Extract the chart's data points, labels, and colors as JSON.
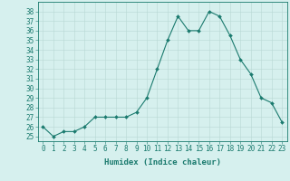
{
  "x": [
    0,
    1,
    2,
    3,
    4,
    5,
    6,
    7,
    8,
    9,
    10,
    11,
    12,
    13,
    14,
    15,
    16,
    17,
    18,
    19,
    20,
    21,
    22,
    23
  ],
  "y": [
    26,
    25,
    25.5,
    25.5,
    26,
    27,
    27,
    27,
    27,
    27.5,
    29,
    32,
    35,
    37.5,
    36,
    36,
    38,
    37.5,
    35.5,
    33,
    31.5,
    29,
    28.5,
    26.5
  ],
  "line_color": "#1a7a6e",
  "marker": "D",
  "marker_size": 2,
  "bg_color": "#d6f0ee",
  "grid_color": "#b8d8d4",
  "xlabel": "Humidex (Indice chaleur)",
  "xlim": [
    -0.5,
    23.5
  ],
  "ylim": [
    24.5,
    39.0
  ],
  "xtick_labels": [
    "0",
    "1",
    "2",
    "3",
    "4",
    "5",
    "6",
    "7",
    "8",
    "9",
    "10",
    "11",
    "12",
    "13",
    "14",
    "15",
    "16",
    "17",
    "18",
    "19",
    "20",
    "21",
    "22",
    "23"
  ],
  "ytick_values": [
    25,
    26,
    27,
    28,
    29,
    30,
    31,
    32,
    33,
    34,
    35,
    36,
    37,
    38
  ],
  "axis_color": "#1a7a6e",
  "tick_color": "#1a7a6e",
  "label_fontsize": 6.5,
  "tick_fontsize": 5.5
}
